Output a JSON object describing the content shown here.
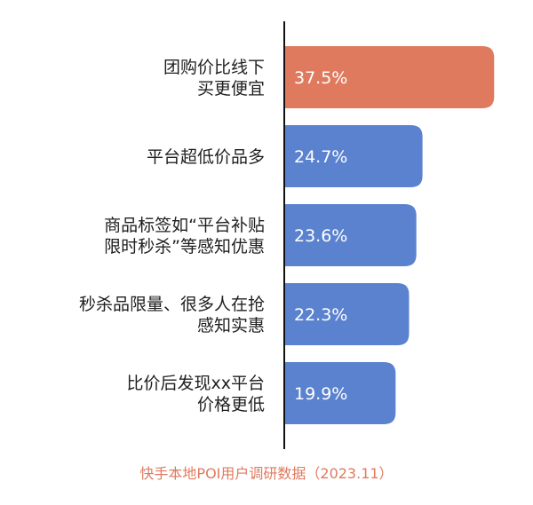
{
  "chart_data": {
    "type": "bar",
    "orientation": "horizontal",
    "categories": [
      [
        "团购价比线下",
        "买更便宜"
      ],
      [
        "平台超低价品多"
      ],
      [
        "商品标签如“平台补贴",
        "限时秒杀”等感知优惠"
      ],
      [
        "秒杀品限量、很多人在抢",
        "感知实惠"
      ],
      [
        "比价后发现xx平台",
        "价格更低"
      ]
    ],
    "values": [
      37.5,
      24.7,
      23.6,
      22.3,
      19.9
    ],
    "value_labels": [
      "37.5%",
      "24.7%",
      "23.6%",
      "22.3%",
      "19.9%"
    ],
    "colors": [
      "#e07a5f",
      "#5b82cf",
      "#5b82cf",
      "#5b82cf",
      "#5b82cf"
    ],
    "xlim": [
      0,
      40
    ],
    "grid": false,
    "legend": "none",
    "source": "快手本地POI用户调研数据（2023.11）"
  }
}
